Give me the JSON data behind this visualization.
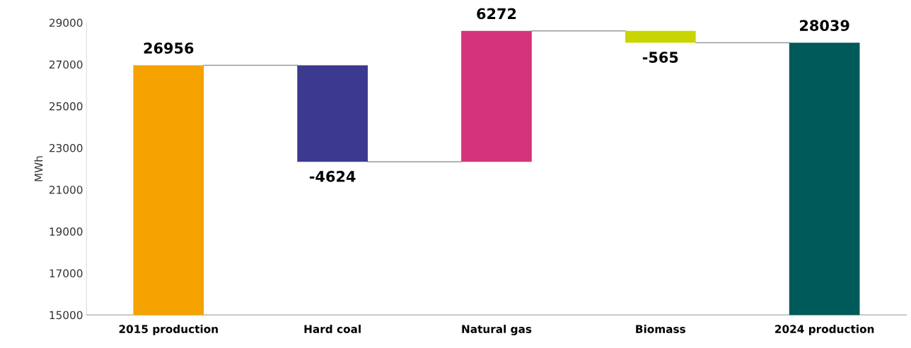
{
  "chart_data": {
    "type": "bar",
    "ylabel": "MWh",
    "categories": [
      "2015 production",
      "Hard coal",
      "Natural gas",
      "Biomass",
      "2024 production"
    ],
    "values": [
      26956,
      -4624,
      6272,
      -565,
      28039
    ],
    "base": [
      0,
      26956,
      22332,
      28604,
      0
    ],
    "colors": [
      "#f5a100",
      "#3c3a8e",
      "#d6337d",
      "#c9d500",
      "#005a5a"
    ],
    "ylim": [
      15000,
      29000
    ],
    "yticks": [
      15000,
      17000,
      19000,
      21000,
      23000,
      25000,
      27000,
      29000
    ],
    "data_labels": true,
    "grid": false
  }
}
